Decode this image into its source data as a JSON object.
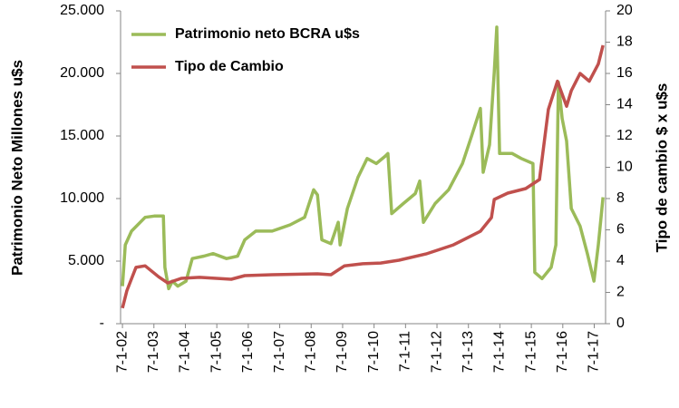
{
  "chart_data": {
    "type": "line",
    "ylabel": "Patrimonio Neto Millones  u$s",
    "y2label": "Tipo de cambio $ x u$s",
    "xlim": [
      2001.94,
      2017.36
    ],
    "xticks": [
      {
        "value": 2002,
        "label": "7-1-02"
      },
      {
        "value": 2003,
        "label": "7-1-03"
      },
      {
        "value": 2004,
        "label": "7-1-04"
      },
      {
        "value": 2005,
        "label": "7-1-05"
      },
      {
        "value": 2006,
        "label": "7-1-06"
      },
      {
        "value": 2007,
        "label": "7-1-07"
      },
      {
        "value": 2008,
        "label": "7-1-08"
      },
      {
        "value": 2009,
        "label": "7-1-09"
      },
      {
        "value": 2010,
        "label": "7-1-10"
      },
      {
        "value": 2011,
        "label": "7-1-11"
      },
      {
        "value": 2012,
        "label": "7-1-12"
      },
      {
        "value": 2013,
        "label": "7-1-13"
      },
      {
        "value": 2014,
        "label": "7-1-14"
      },
      {
        "value": 2015,
        "label": "7-1-15"
      },
      {
        "value": 2016,
        "label": "7-1-16"
      },
      {
        "value": 2017,
        "label": "7-1-17"
      }
    ],
    "ylim": [
      0,
      25000
    ],
    "yticks": [
      {
        "value": 0,
        "label": "-"
      },
      {
        "value": 5000,
        "label": "5.000"
      },
      {
        "value": 10000,
        "label": "10.000"
      },
      {
        "value": 15000,
        "label": "15.000"
      },
      {
        "value": 20000,
        "label": "20.000"
      },
      {
        "value": 25000,
        "label": "25.000"
      }
    ],
    "y2lim": [
      0,
      20
    ],
    "y2ticks": [
      0,
      2,
      4,
      6,
      8,
      10,
      12,
      14,
      16,
      18,
      20
    ],
    "legend": "upper left",
    "grid": false,
    "series": [
      {
        "name": "Patrimonio neto BCRA u$s",
        "color": "#9bbb59",
        "x": [
          2002.0,
          2002.09,
          2002.29,
          2002.72,
          2003.01,
          2003.3,
          2003.35,
          2003.47,
          2003.59,
          2003.76,
          2004.02,
          2004.22,
          2004.59,
          2004.88,
          2005.31,
          2005.66,
          2005.89,
          2006.24,
          2006.76,
          2007.33,
          2007.79,
          2008.08,
          2008.2,
          2008.34,
          2008.63,
          2008.86,
          2008.92,
          2009.15,
          2009.49,
          2009.78,
          2010.07,
          2010.36,
          2010.44,
          2010.56,
          2010.93,
          2011.31,
          2011.45,
          2011.57,
          2011.94,
          2012.37,
          2012.81,
          2013.1,
          2013.38,
          2013.47,
          2013.67,
          2013.82,
          2013.9,
          2013.99,
          2014.39,
          2014.68,
          2015.05,
          2015.11,
          2015.34,
          2015.63,
          2015.78,
          2015.86,
          2015.98,
          2016.12,
          2016.27,
          2016.55,
          2016.78,
          2016.99,
          2017.13,
          2017.28
        ],
        "values": [
          3000,
          6300,
          7400,
          8500,
          8600,
          8600,
          4500,
          2800,
          3400,
          3000,
          3400,
          5200,
          5400,
          5600,
          5200,
          5400,
          6700,
          7400,
          7400,
          7900,
          8500,
          10700,
          10300,
          6700,
          6400,
          8100,
          6300,
          9200,
          11700,
          13200,
          12800,
          13400,
          13600,
          8800,
          9600,
          10400,
          11400,
          8100,
          9600,
          10700,
          12800,
          15000,
          17200,
          12100,
          14300,
          20100,
          23700,
          13600,
          13600,
          13200,
          12800,
          4100,
          3600,
          4500,
          6300,
          19300,
          16400,
          14600,
          9200,
          7800,
          5600,
          3400,
          6300,
          10100
        ]
      },
      {
        "name": "Tipo de Cambio",
        "color": "#c0504d",
        "axis": "y2",
        "x": [
          2002.0,
          2002.14,
          2002.43,
          2002.72,
          2003.15,
          2003.44,
          2003.87,
          2004.45,
          2005.46,
          2005.89,
          2006.76,
          2008.2,
          2008.63,
          2009.06,
          2009.64,
          2010.21,
          2010.79,
          2011.65,
          2012.52,
          2013.38,
          2013.73,
          2013.82,
          2014.25,
          2014.82,
          2015.26,
          2015.54,
          2015.83,
          2016.12,
          2016.27,
          2016.55,
          2016.84,
          2017.13,
          2017.28
        ],
        "values": [
          1.0,
          2.1,
          3.6,
          3.7,
          3.0,
          2.6,
          2.9,
          2.96,
          2.84,
          3.07,
          3.13,
          3.19,
          3.13,
          3.7,
          3.83,
          3.88,
          4.06,
          4.46,
          5.04,
          5.91,
          6.78,
          7.94,
          8.35,
          8.64,
          9.22,
          13.7,
          15.5,
          13.9,
          14.9,
          16.0,
          15.5,
          16.6,
          17.8
        ]
      }
    ]
  }
}
